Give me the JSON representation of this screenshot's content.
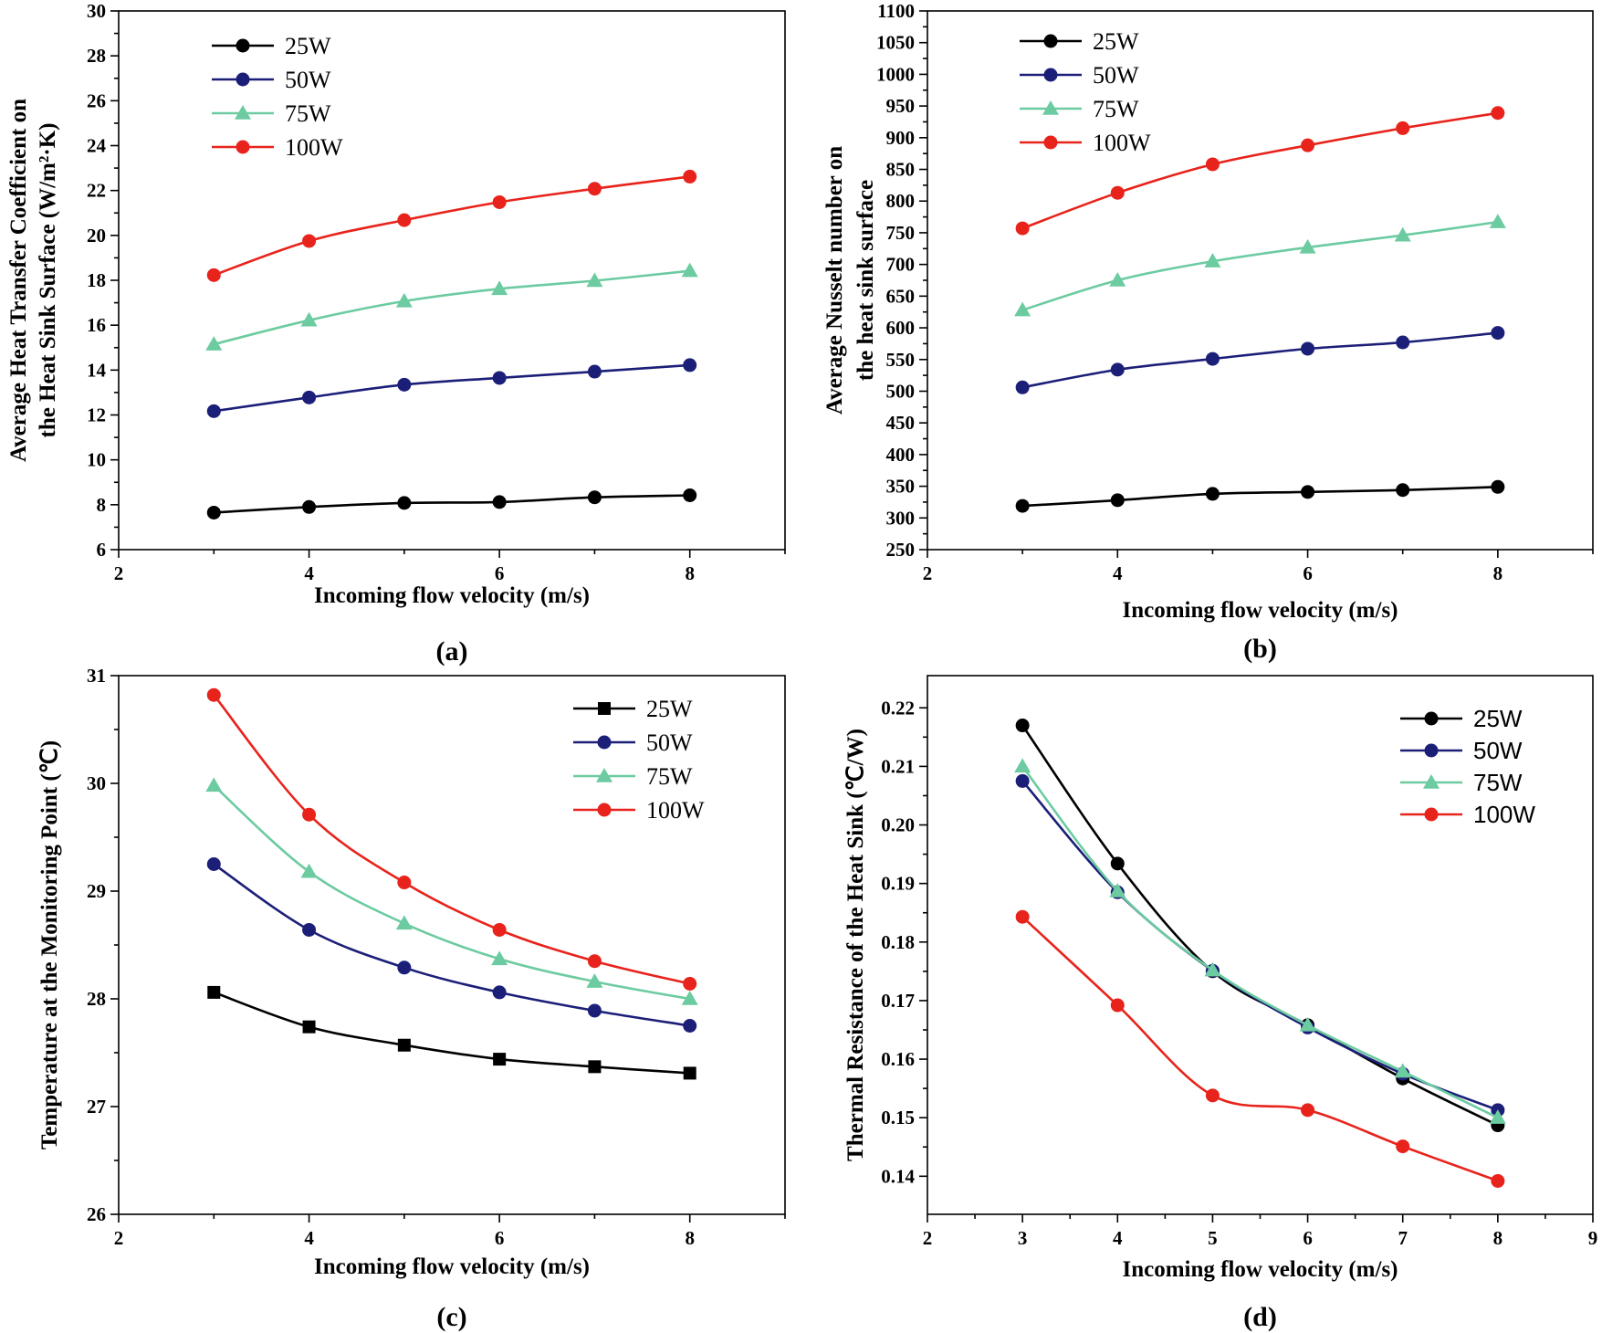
{
  "chart_data": [
    {
      "type": "line",
      "panel": "(a)",
      "xlabel": "Incoming flow velocity (m/s)",
      "ylabel_lines": [
        "Average Heat Transfer Coefficient on",
        "the Heat Sink Surface (W/m²·K)"
      ],
      "xlim": [
        2,
        9
      ],
      "ylim": [
        6,
        30
      ],
      "xticks": [
        2,
        4,
        6,
        8
      ],
      "yticks": [
        6,
        8,
        10,
        12,
        14,
        16,
        18,
        20,
        22,
        24,
        26,
        28,
        30
      ],
      "legend_position": "top-left",
      "x": [
        3,
        4,
        5,
        6,
        7,
        8
      ],
      "series": [
        {
          "name": "25W",
          "color": "#000000",
          "marker": "circle",
          "values": [
            7.65,
            7.9,
            8.08,
            8.12,
            8.33,
            8.42
          ]
        },
        {
          "name": "50W",
          "color": "#1c1f78",
          "marker": "circle",
          "values": [
            12.17,
            12.78,
            13.35,
            13.65,
            13.93,
            14.22
          ]
        },
        {
          "name": "75W",
          "color": "#6ccba0",
          "marker": "triangle",
          "values": [
            15.15,
            16.22,
            17.07,
            17.62,
            17.98,
            18.42
          ]
        },
        {
          "name": "100W",
          "color": "#e8231c",
          "marker": "circle",
          "values": [
            18.23,
            19.75,
            20.68,
            21.48,
            22.08,
            22.62
          ]
        }
      ]
    },
    {
      "type": "line",
      "panel": "(b)",
      "xlabel": "Incoming flow velocity (m/s)",
      "ylabel_lines": [
        "Average Nusselt number on",
        "the heat sink surface"
      ],
      "xlim": [
        2,
        9
      ],
      "ylim": [
        250,
        1100
      ],
      "xticks": [
        2,
        4,
        6,
        8
      ],
      "yticks": [
        250,
        300,
        350,
        400,
        450,
        500,
        550,
        600,
        650,
        700,
        750,
        800,
        850,
        900,
        950,
        1000,
        1050,
        1100
      ],
      "legend_position": "top-left",
      "x": [
        3,
        4,
        5,
        6,
        7,
        8
      ],
      "series": [
        {
          "name": "25W",
          "color": "#000000",
          "marker": "circle",
          "values": [
            319,
            328,
            338,
            341,
            344,
            349
          ]
        },
        {
          "name": "50W",
          "color": "#1c1f78",
          "marker": "circle",
          "values": [
            506,
            534,
            551,
            567,
            577,
            592
          ]
        },
        {
          "name": "75W",
          "color": "#6ccba0",
          "marker": "triangle",
          "values": [
            628,
            675,
            705,
            727,
            746,
            767
          ]
        },
        {
          "name": "100W",
          "color": "#e8231c",
          "marker": "circle",
          "values": [
            757,
            813,
            858,
            888,
            915,
            939
          ]
        }
      ]
    },
    {
      "type": "line",
      "panel": "(c)",
      "xlabel": "Incoming flow velocity (m/s)",
      "ylabel_lines": [
        "Temperature at the Monitoring Point (℃)"
      ],
      "xlim": [
        2,
        9
      ],
      "ylim": [
        26,
        31
      ],
      "xticks": [
        2,
        4,
        6,
        8
      ],
      "yticks": [
        26,
        27,
        28,
        29,
        30,
        31
      ],
      "legend_position": "top-right",
      "x": [
        3,
        4,
        5,
        6,
        7,
        8
      ],
      "series": [
        {
          "name": "25W",
          "color": "#000000",
          "marker": "square",
          "values": [
            28.06,
            27.74,
            27.57,
            27.44,
            27.37,
            27.31
          ]
        },
        {
          "name": "50W",
          "color": "#1c1f78",
          "marker": "circle",
          "values": [
            29.25,
            28.64,
            28.29,
            28.06,
            27.89,
            27.75
          ]
        },
        {
          "name": "75W",
          "color": "#6ccba0",
          "marker": "triangle",
          "values": [
            29.98,
            29.18,
            28.7,
            28.37,
            28.16,
            28.0
          ]
        },
        {
          "name": "100W",
          "color": "#e8231c",
          "marker": "circle",
          "values": [
            30.82,
            29.71,
            29.08,
            28.64,
            28.35,
            28.14
          ]
        }
      ]
    },
    {
      "type": "line",
      "panel": "(d)",
      "xlabel": "Incoming flow velocity (m/s)",
      "ylabel_lines": [
        "Thermal Resistance of the Heat Sink (℃/W)"
      ],
      "xlim": [
        2,
        9
      ],
      "ylim": [
        0.1335,
        0.2255
      ],
      "xticks": [
        2,
        3,
        4,
        5,
        6,
        7,
        8,
        9
      ],
      "yticks": [
        0.14,
        0.15,
        0.16,
        0.17,
        0.18,
        0.19,
        0.2,
        0.21,
        0.22
      ],
      "ytick_labels": [
        "0.14",
        "0.15",
        "0.16",
        "0.17",
        "0.18",
        "0.19",
        "0.20",
        "0.21",
        "0.22"
      ],
      "legend_position": "top-right",
      "x": [
        3,
        4,
        5,
        6,
        7,
        8
      ],
      "series": [
        {
          "name": "25W",
          "color": "#000000",
          "marker": "circle",
          "values": [
            0.217,
            0.1934,
            0.175,
            0.1658,
            0.1567,
            0.1487
          ]
        },
        {
          "name": "50W",
          "color": "#1c1f78",
          "marker": "circle",
          "values": [
            0.2075,
            0.1885,
            0.1751,
            0.1654,
            0.1575,
            0.1513
          ]
        },
        {
          "name": "75W",
          "color": "#6ccba0",
          "marker": "triangle",
          "values": [
            0.21,
            0.1887,
            0.1752,
            0.1658,
            0.1579,
            0.15
          ]
        },
        {
          "name": "100W",
          "color": "#e8231c",
          "marker": "circle",
          "values": [
            0.1843,
            0.1692,
            0.1538,
            0.1513,
            0.1451,
            0.1392
          ]
        }
      ]
    }
  ]
}
